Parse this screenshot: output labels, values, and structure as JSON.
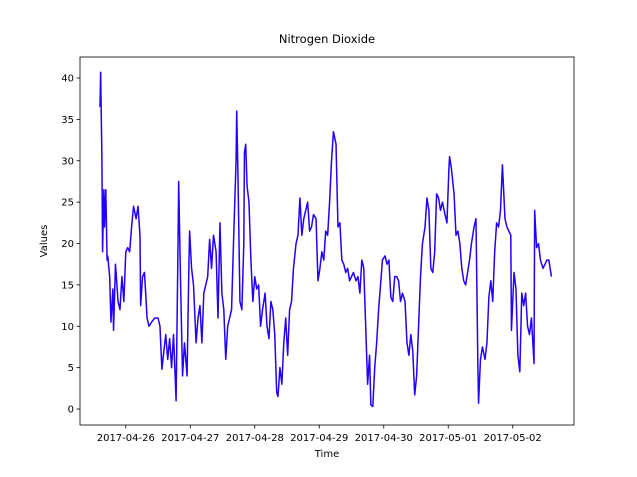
{
  "chart_data": {
    "type": "line",
    "title": "Nitrogen Dioxide",
    "xlabel": "Time",
    "ylabel": "Values",
    "color": "#2200ff",
    "xlim": [
      17281.29,
      17288.95
    ],
    "ylim": [
      -1.93,
      42.54
    ],
    "xticks": [
      {
        "value": 17282,
        "label": "2017-04-26"
      },
      {
        "value": 17283,
        "label": "2017-04-27"
      },
      {
        "value": 17284,
        "label": "2017-04-28"
      },
      {
        "value": 17285,
        "label": "2017-04-29"
      },
      {
        "value": 17286,
        "label": "2017-04-30"
      },
      {
        "value": 17287,
        "label": "2017-05-01"
      },
      {
        "value": 17288,
        "label": "2017-05-02"
      }
    ],
    "yticks": [
      0,
      5,
      10,
      15,
      20,
      25,
      30,
      35,
      40
    ],
    "x": [
      17281.6,
      17281.61,
      17281.63,
      17281.64,
      17281.66,
      17281.67,
      17281.69,
      17281.71,
      17281.72,
      17281.75,
      17281.77,
      17281.8,
      17281.81,
      17281.84,
      17281.88,
      17281.91,
      17281.94,
      17281.97,
      17282.0,
      17282.03,
      17282.06,
      17282.09,
      17282.12,
      17282.16,
      17282.19,
      17282.22,
      17282.23,
      17282.26,
      17282.29,
      17282.33,
      17282.36,
      17282.4,
      17282.45,
      17282.5,
      17282.53,
      17282.56,
      17282.59,
      17282.62,
      17282.65,
      17282.68,
      17282.71,
      17282.74,
      17282.78,
      17282.81,
      17282.82,
      17282.85,
      17282.88,
      17282.91,
      17282.95,
      17282.98,
      17282.99,
      17283.02,
      17283.05,
      17283.09,
      17283.12,
      17283.15,
      17283.18,
      17283.21,
      17283.24,
      17283.27,
      17283.3,
      17283.33,
      17283.36,
      17283.4,
      17283.43,
      17283.46,
      17283.49,
      17283.52,
      17283.55,
      17283.58,
      17283.61,
      17283.64,
      17283.67,
      17283.71,
      17283.72,
      17283.74,
      17283.77,
      17283.8,
      17283.83,
      17283.84,
      17283.86,
      17283.88,
      17283.91,
      17283.94,
      17283.97,
      17284.0,
      17284.03,
      17284.06,
      17284.09,
      17284.12,
      17284.16,
      17284.19,
      17284.22,
      17284.25,
      17284.28,
      17284.31,
      17284.34,
      17284.36,
      17284.39,
      17284.42,
      17284.45,
      17284.48,
      17284.51,
      17284.54,
      17284.57,
      17284.6,
      17284.64,
      17284.67,
      17284.7,
      17284.73,
      17284.76,
      17284.79,
      17284.82,
      17284.85,
      17284.88,
      17284.91,
      17284.95,
      17284.98,
      17285.01,
      17285.04,
      17285.07,
      17285.1,
      17285.13,
      17285.16,
      17285.19,
      17285.22,
      17285.26,
      17285.29,
      17285.32,
      17285.35,
      17285.38,
      17285.41,
      17285.44,
      17285.47,
      17285.5,
      17285.53,
      17285.57,
      17285.6,
      17285.63,
      17285.66,
      17285.69,
      17285.72,
      17285.75,
      17285.78,
      17285.8,
      17285.83,
      17285.86,
      17285.89,
      17285.92,
      17285.95,
      17285.98,
      17286.02,
      17286.05,
      17286.08,
      17286.11,
      17286.14,
      17286.17,
      17286.2,
      17286.23,
      17286.26,
      17286.29,
      17286.33,
      17286.36,
      17286.39,
      17286.42,
      17286.45,
      17286.48,
      17286.51,
      17286.54,
      17286.57,
      17286.6,
      17286.64,
      17286.67,
      17286.7,
      17286.73,
      17286.76,
      17286.79,
      17286.82,
      17286.85,
      17286.88,
      17286.91,
      17286.95,
      17286.98,
      17287.01,
      17287.02,
      17287.05,
      17287.09,
      17287.12,
      17287.15,
      17287.18,
      17287.21,
      17287.24,
      17287.27,
      17287.3,
      17287.33,
      17287.36,
      17287.4,
      17287.43,
      17287.46,
      17287.47,
      17287.5,
      17287.53,
      17287.57,
      17287.6,
      17287.63,
      17287.66,
      17287.69,
      17287.72,
      17287.75,
      17287.78,
      17287.81,
      17287.84,
      17287.88,
      17287.91,
      17287.94,
      17287.97,
      17287.98,
      17288.02,
      17288.05,
      17288.08,
      17288.11,
      17288.14,
      17288.17,
      17288.2,
      17288.23,
      17288.26,
      17288.29,
      17288.33,
      17288.34,
      17288.37,
      17288.4,
      17288.43,
      17288.47,
      17288.5,
      17288.53,
      17288.56,
      17288.59,
      17288.6
    ],
    "values": [
      36.5,
      40.7,
      30,
      19,
      26.5,
      22,
      26.5,
      18,
      18.5,
      16,
      10.5,
      14.5,
      9.5,
      17.5,
      13,
      12,
      16,
      13,
      19,
      19.5,
      19,
      22,
      24.5,
      23,
      24.5,
      21,
      12.5,
      16,
      16.5,
      11,
      10,
      10.5,
      11,
      11,
      10,
      4.8,
      7,
      9,
      6,
      8.5,
      5,
      9,
      1,
      20,
      27.5,
      15,
      4,
      8,
      4,
      18,
      21.5,
      17,
      15,
      8,
      11,
      12.5,
      8,
      14,
      15,
      16,
      20.5,
      17,
      21,
      19,
      11,
      22.5,
      14,
      12,
      6,
      10,
      11,
      12,
      20,
      30,
      36,
      28,
      13,
      12,
      20,
      31,
      32,
      27,
      25,
      18,
      13,
      16,
      14.5,
      15,
      10,
      12,
      14,
      10,
      8.5,
      13,
      12,
      9,
      2,
      1.5,
      5,
      3,
      8,
      11,
      6.5,
      12,
      13,
      17,
      20,
      21,
      25.5,
      21,
      23,
      24,
      25,
      21.5,
      22,
      23.5,
      23,
      15.5,
      17,
      19,
      18,
      21.5,
      21,
      25,
      30,
      33.5,
      32,
      22,
      22.5,
      18,
      17.5,
      16.5,
      17,
      15.5,
      16,
      16.5,
      15.5,
      16,
      14,
      18,
      17,
      10,
      3,
      6.5,
      0.5,
      0.3,
      5,
      8,
      12,
      15,
      18,
      18.5,
      17.5,
      18,
      13.5,
      13,
      16,
      16,
      15.5,
      13,
      14,
      13,
      8,
      6.5,
      9,
      7,
      1.7,
      4,
      10,
      16,
      20,
      22,
      25.5,
      24,
      17,
      16.5,
      19,
      26,
      25.5,
      24,
      25,
      23.5,
      22.5,
      29,
      30.5,
      29,
      26,
      21,
      21.5,
      20,
      17,
      15.5,
      15,
      16.5,
      18,
      20,
      22,
      23,
      5,
      0.7,
      6,
      7.5,
      6,
      8,
      13.5,
      15.5,
      13,
      19,
      22.5,
      22,
      24,
      29.5,
      23,
      22,
      21.5,
      21,
      9.5,
      16.5,
      14.5,
      6.5,
      4.5,
      14,
      12.5,
      14,
      10,
      9,
      11,
      5.5,
      24,
      19.5,
      20,
      18,
      17,
      17.5,
      18,
      18,
      16.5,
      16
    ]
  }
}
